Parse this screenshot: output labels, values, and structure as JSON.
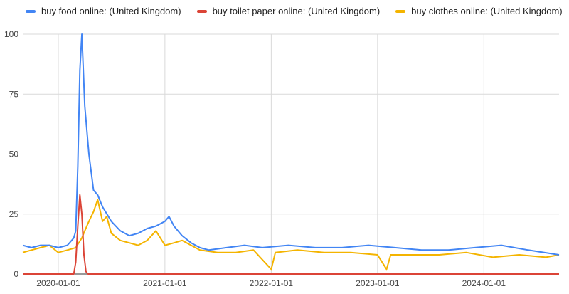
{
  "chart_data": {
    "type": "line",
    "title": "",
    "xlabel": "",
    "ylabel": "",
    "ylim": [
      0,
      100
    ],
    "xlim": [
      "2019-09-01",
      "2024-09-15"
    ],
    "y_ticks": [
      0,
      25,
      50,
      75,
      100
    ],
    "x_ticks": [
      "2020-01-01",
      "2021-01-01",
      "2022-01-01",
      "2023-01-01",
      "2024-01-01"
    ],
    "grid": true,
    "legend_position": "top-left",
    "series": [
      {
        "name": "buy food online: (United Kingdom)",
        "color": "#4285F4",
        "points": [
          [
            "2019-09-01",
            12
          ],
          [
            "2019-10-01",
            11
          ],
          [
            "2019-11-01",
            12
          ],
          [
            "2019-12-01",
            12
          ],
          [
            "2020-01-01",
            11
          ],
          [
            "2020-02-01",
            12
          ],
          [
            "2020-02-23",
            15
          ],
          [
            "2020-03-01",
            18
          ],
          [
            "2020-03-08",
            45
          ],
          [
            "2020-03-15",
            85
          ],
          [
            "2020-03-22",
            100
          ],
          [
            "2020-04-01",
            70
          ],
          [
            "2020-04-15",
            50
          ],
          [
            "2020-05-01",
            35
          ],
          [
            "2020-05-15",
            33
          ],
          [
            "2020-06-01",
            28
          ],
          [
            "2020-07-01",
            22
          ],
          [
            "2020-08-01",
            18
          ],
          [
            "2020-09-01",
            16
          ],
          [
            "2020-10-01",
            17
          ],
          [
            "2020-11-01",
            19
          ],
          [
            "2020-12-01",
            20
          ],
          [
            "2021-01-01",
            22
          ],
          [
            "2021-01-15",
            24
          ],
          [
            "2021-02-01",
            20
          ],
          [
            "2021-03-01",
            16
          ],
          [
            "2021-04-01",
            13
          ],
          [
            "2021-05-01",
            11
          ],
          [
            "2021-06-01",
            10
          ],
          [
            "2021-08-01",
            11
          ],
          [
            "2021-10-01",
            12
          ],
          [
            "2021-12-01",
            11
          ],
          [
            "2022-03-01",
            12
          ],
          [
            "2022-06-01",
            11
          ],
          [
            "2022-09-01",
            11
          ],
          [
            "2022-12-01",
            12
          ],
          [
            "2023-03-01",
            11
          ],
          [
            "2023-06-01",
            10
          ],
          [
            "2023-09-01",
            10
          ],
          [
            "2023-12-01",
            11
          ],
          [
            "2024-03-01",
            12
          ],
          [
            "2024-06-01",
            10
          ],
          [
            "2024-09-15",
            8
          ]
        ]
      },
      {
        "name": "buy toilet paper online: (United Kingdom)",
        "color": "#DB4437",
        "points": [
          [
            "2019-09-01",
            0
          ],
          [
            "2020-02-23",
            0
          ],
          [
            "2020-03-01",
            5
          ],
          [
            "2020-03-08",
            20
          ],
          [
            "2020-03-15",
            33
          ],
          [
            "2020-03-22",
            25
          ],
          [
            "2020-03-29",
            8
          ],
          [
            "2020-04-05",
            1
          ],
          [
            "2020-04-12",
            0
          ],
          [
            "2024-09-15",
            0
          ]
        ]
      },
      {
        "name": "buy clothes online: (United Kingdom)",
        "color": "#F4B400",
        "points": [
          [
            "2019-09-01",
            9
          ],
          [
            "2019-10-01",
            10
          ],
          [
            "2019-11-01",
            11
          ],
          [
            "2019-12-01",
            12
          ],
          [
            "2020-01-01",
            9
          ],
          [
            "2020-02-01",
            10
          ],
          [
            "2020-03-01",
            11
          ],
          [
            "2020-03-22",
            15
          ],
          [
            "2020-04-01",
            18
          ],
          [
            "2020-04-15",
            22
          ],
          [
            "2020-05-01",
            26
          ],
          [
            "2020-05-15",
            31
          ],
          [
            "2020-06-01",
            22
          ],
          [
            "2020-06-15",
            24
          ],
          [
            "2020-07-01",
            17
          ],
          [
            "2020-08-01",
            14
          ],
          [
            "2020-09-01",
            13
          ],
          [
            "2020-10-01",
            12
          ],
          [
            "2020-11-01",
            14
          ],
          [
            "2020-12-01",
            18
          ],
          [
            "2021-01-01",
            12
          ],
          [
            "2021-02-01",
            13
          ],
          [
            "2021-03-01",
            14
          ],
          [
            "2021-04-01",
            12
          ],
          [
            "2021-05-01",
            10
          ],
          [
            "2021-07-01",
            9
          ],
          [
            "2021-09-01",
            9
          ],
          [
            "2021-11-01",
            10
          ],
          [
            "2022-01-01",
            2
          ],
          [
            "2022-01-15",
            9
          ],
          [
            "2022-04-01",
            10
          ],
          [
            "2022-07-01",
            9
          ],
          [
            "2022-10-01",
            9
          ],
          [
            "2023-01-01",
            8
          ],
          [
            "2023-02-01",
            2
          ],
          [
            "2023-02-15",
            8
          ],
          [
            "2023-05-01",
            8
          ],
          [
            "2023-08-01",
            8
          ],
          [
            "2023-11-01",
            9
          ],
          [
            "2024-02-01",
            7
          ],
          [
            "2024-05-01",
            8
          ],
          [
            "2024-08-01",
            7
          ],
          [
            "2024-09-15",
            8
          ]
        ]
      }
    ]
  }
}
